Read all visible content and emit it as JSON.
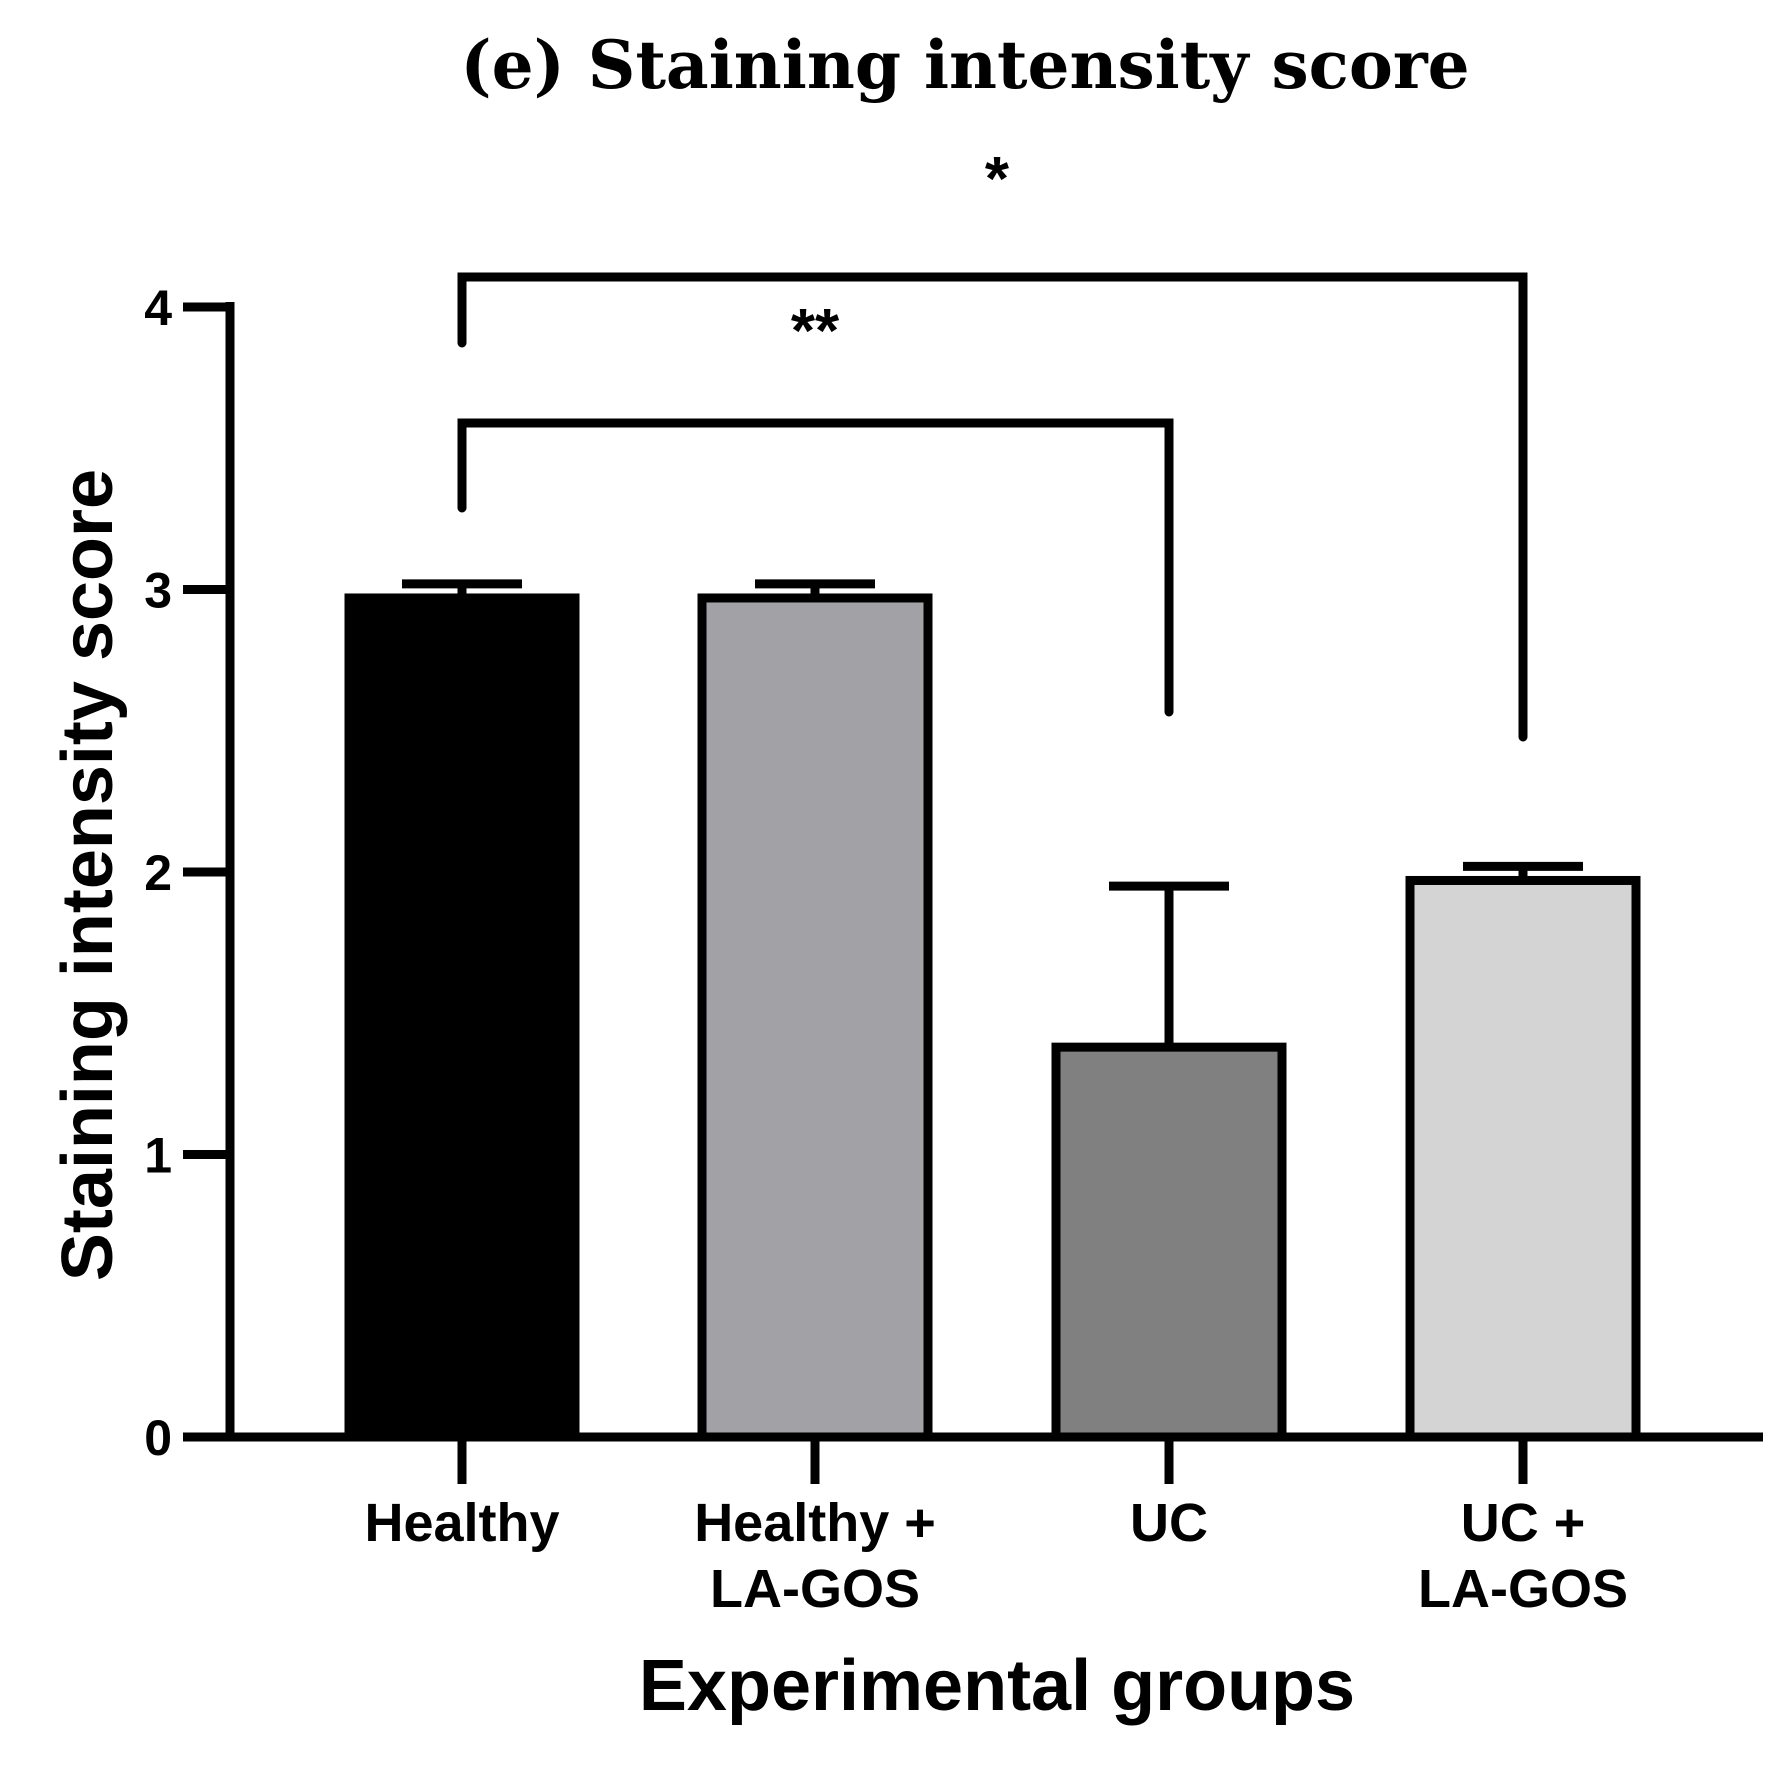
{
  "chart_data": {
    "type": "bar",
    "title": "(e) Staining intensity score",
    "xlabel": "Experimental groups",
    "ylabel": "Staining intensity score",
    "ylim": [
      0,
      4
    ],
    "yticks": [
      "0",
      "1",
      "2",
      "3",
      "4"
    ],
    "categories": [
      [
        "Healthy"
      ],
      [
        "Healthy +",
        "LA-GOS"
      ],
      [
        "UC"
      ],
      [
        "UC +",
        "LA-GOS"
      ]
    ],
    "values": [
      2.97,
      2.97,
      1.38,
      1.97
    ],
    "errors": [
      0.05,
      0.05,
      0.57,
      0.05
    ],
    "colors": [
      "#000000",
      "#a2a2a6",
      "#808080",
      "#d4d4d4"
    ],
    "significance": [
      {
        "from": 0,
        "to": 2,
        "label": "**"
      },
      {
        "from": 0,
        "to": 3,
        "label": "*"
      }
    ]
  }
}
